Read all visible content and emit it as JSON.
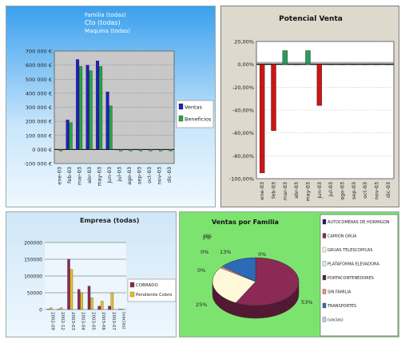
{
  "charts": [
    {
      "id": "ventas_beneficios",
      "header": [
        "Familia (todas)",
        "Cto (todas)",
        "Maquina (todas)"
      ],
      "chart_data": {
        "type": "bar",
        "title": "",
        "categories": [
          "ene-03",
          "feb-03",
          "mar-03",
          "abr-03",
          "may-03",
          "jun-03",
          "jul-03",
          "ago-03",
          "sep-03",
          "oct-03",
          "nov-03",
          "dic-03"
        ],
        "series": [
          {
            "name": "Ventas",
            "values": [
              0,
              210000,
              640000,
              600000,
              630000,
              410000,
              0,
              0,
              0,
              0,
              0,
              0
            ]
          },
          {
            "name": "Beneficios",
            "values": [
              -10000,
              190000,
              590000,
              560000,
              590000,
              310000,
              -10000,
              -10000,
              -10000,
              -10000,
              -10000,
              -10000
            ]
          }
        ],
        "yticks": [
          "-100 000 €",
          "0 000 €",
          "100 000 €",
          "200 000 €",
          "300 000 €",
          "400 000 €",
          "500 000 €",
          "600 000 €",
          "700 000 €"
        ],
        "ylim": [
          -100000,
          700000
        ],
        "legend_position": "right",
        "colors": [
          "#2020c0",
          "#22a844"
        ]
      }
    },
    {
      "id": "potencial_venta",
      "chart_data": {
        "type": "bar",
        "title": "Potencial Venta",
        "categories": [
          "ene-03",
          "feb-03",
          "mar-03",
          "abr-03",
          "may-03",
          "jun-03",
          "jul-03",
          "ago-03",
          "sep-03",
          "oct-03",
          "nov-03",
          "dic-03"
        ],
        "series": [
          {
            "name": "",
            "values": [
              -0.95,
              -0.58,
              0.12,
              0.0,
              0.12,
              -0.36,
              0,
              0,
              0,
              0,
              0,
              0
            ]
          }
        ],
        "yticks": [
          "20,00%",
          "0,00%",
          "-20,00%",
          "-40,00%",
          "-60,00%",
          "-80,00%",
          "-100,00%"
        ],
        "ylim": [
          -1.0,
          0.2
        ],
        "colors": [
          "#cc1515",
          "#2a9a5a"
        ]
      }
    },
    {
      "id": "empresa",
      "header": "Empresa (todas)",
      "chart_data": {
        "type": "bar",
        "title": "",
        "categories": [
          "2002-09",
          "2002-12",
          "2003-03",
          "2003-04",
          "2003-05",
          "2003-06",
          "2003-07",
          "(vacias)"
        ],
        "series": [
          {
            "name": "COBRADO",
            "values": [
              0,
              0,
              150000,
              60000,
              70000,
              10000,
              10000,
              0
            ]
          },
          {
            "name": "Pendiente Cobro",
            "values": [
              5000,
              5000,
              120000,
              50000,
              35000,
              25000,
              50000,
              0
            ]
          }
        ],
        "yticks": [
          "0",
          "50000",
          "100000",
          "150000",
          "200000"
        ],
        "ylim": [
          0,
          200000
        ],
        "legend_position": "right",
        "colors": [
          "#8a2a55",
          "#e6c020"
        ]
      }
    },
    {
      "id": "ventas_familia",
      "chart_data": {
        "type": "pie",
        "title": "Ventas por Familia",
        "labels": [
          "AUTOCOMERAS DE HORMIGON",
          "CAMION GRUA",
          "GRUAS TELESCOPICAS",
          "PLATAFORMA ELEVADORA",
          "PORTACONTENEDORES",
          "SIN FAMILIA",
          "TRANSPORTES",
          "(vacias)"
        ],
        "values": [
          0,
          53,
          25,
          0,
          0,
          1,
          13,
          0
        ],
        "data_labels": [
          "0%",
          "53%",
          "25%",
          "0%",
          "0%",
          "1%",
          "13%",
          "0%"
        ],
        "colors": [
          "#1a1a70",
          "#8a2a55",
          "#fff8d8",
          "#d8f0ff",
          "#5a2050",
          "#e89090",
          "#2c6ab8",
          "#c8c8e8"
        ],
        "legend_position": "right"
      }
    }
  ]
}
